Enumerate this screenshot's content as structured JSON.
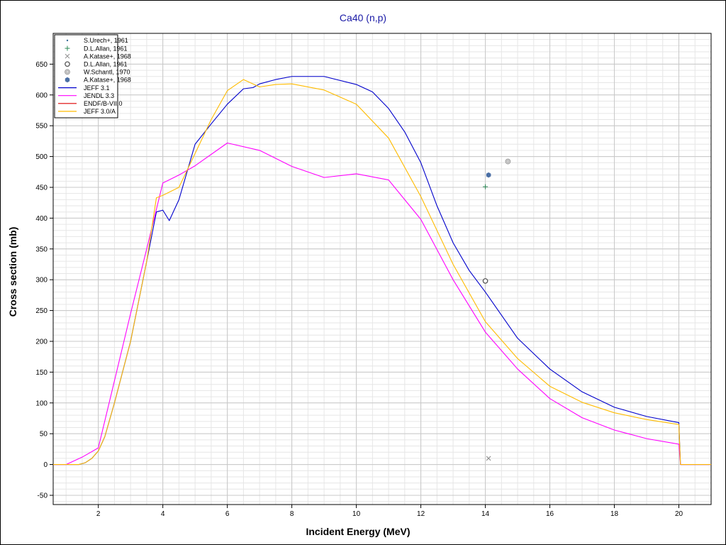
{
  "chart_data": {
    "type": "line",
    "title": "Ca40 (n,p)",
    "xlabel": "Incident Energy (MeV)",
    "ylabel": "Cross section (mb)",
    "xlim": [
      0.6,
      21
    ],
    "ylim": [
      -65,
      700
    ],
    "x_ticks": [
      2,
      4,
      6,
      8,
      10,
      12,
      14,
      16,
      18,
      20
    ],
    "y_ticks": [
      -50,
      0,
      50,
      100,
      150,
      200,
      250,
      300,
      350,
      400,
      450,
      500,
      550,
      600,
      650
    ],
    "grid": true,
    "legend_position": "top-left",
    "series": [
      {
        "name": "JEFF 3.1",
        "color": "#0000cc",
        "kind": "line",
        "points": [
          [
            0.6,
            0
          ],
          [
            1.0,
            0
          ],
          [
            1.4,
            0
          ],
          [
            1.6,
            3
          ],
          [
            1.8,
            10
          ],
          [
            2.0,
            22
          ],
          [
            2.2,
            45
          ],
          [
            2.5,
            100
          ],
          [
            3.0,
            200
          ],
          [
            3.5,
            330
          ],
          [
            3.8,
            410
          ],
          [
            4.0,
            413
          ],
          [
            4.2,
            396
          ],
          [
            4.5,
            430
          ],
          [
            5.0,
            520
          ],
          [
            5.5,
            553
          ],
          [
            6.0,
            585
          ],
          [
            6.5,
            610
          ],
          [
            6.8,
            612
          ],
          [
            7.0,
            618
          ],
          [
            7.5,
            625
          ],
          [
            8.0,
            630
          ],
          [
            9.0,
            630
          ],
          [
            10.0,
            617
          ],
          [
            10.5,
            605
          ],
          [
            11.0,
            578
          ],
          [
            11.5,
            540
          ],
          [
            12.0,
            490
          ],
          [
            12.5,
            420
          ],
          [
            13.0,
            360
          ],
          [
            13.5,
            315
          ],
          [
            14.0,
            280
          ],
          [
            15.0,
            205
          ],
          [
            16.0,
            155
          ],
          [
            17.0,
            118
          ],
          [
            18.0,
            93
          ],
          [
            19.0,
            78
          ],
          [
            20.0,
            68
          ],
          [
            20.05,
            0
          ],
          [
            21.0,
            0
          ]
        ]
      },
      {
        "name": "JENDL 3.3",
        "color": "#ff00ff",
        "kind": "line",
        "points": [
          [
            0.6,
            0
          ],
          [
            1.0,
            0
          ],
          [
            1.5,
            12
          ],
          [
            2.0,
            27
          ],
          [
            3.0,
            245
          ],
          [
            3.5,
            350
          ],
          [
            4.0,
            457
          ],
          [
            4.5,
            470
          ],
          [
            5.0,
            485
          ],
          [
            6.0,
            522
          ],
          [
            7.0,
            510
          ],
          [
            8.0,
            484
          ],
          [
            9.0,
            466
          ],
          [
            10.0,
            472
          ],
          [
            11.0,
            462
          ],
          [
            12.0,
            398
          ],
          [
            13.0,
            300
          ],
          [
            14.0,
            215
          ],
          [
            15.0,
            155
          ],
          [
            16.0,
            107
          ],
          [
            17.0,
            76
          ],
          [
            18.0,
            56
          ],
          [
            19.0,
            42
          ],
          [
            20.0,
            33
          ],
          [
            20.05,
            0
          ],
          [
            21.0,
            0
          ]
        ]
      },
      {
        "name": "ENDF/B-VII.0",
        "color": "#dd0000",
        "kind": "line",
        "points": []
      },
      {
        "name": "JEFF 3.0/A",
        "color": "#ffbb00",
        "kind": "line",
        "points": [
          [
            0.6,
            0
          ],
          [
            1.0,
            0
          ],
          [
            1.4,
            0
          ],
          [
            1.6,
            3
          ],
          [
            1.8,
            10
          ],
          [
            2.0,
            22
          ],
          [
            2.2,
            45
          ],
          [
            2.5,
            100
          ],
          [
            3.0,
            200
          ],
          [
            3.5,
            330
          ],
          [
            3.8,
            433
          ],
          [
            4.0,
            437
          ],
          [
            4.5,
            450
          ],
          [
            5.0,
            505
          ],
          [
            5.5,
            560
          ],
          [
            6.0,
            607
          ],
          [
            6.5,
            625
          ],
          [
            7.0,
            613
          ],
          [
            7.5,
            617
          ],
          [
            8.0,
            618
          ],
          [
            9.0,
            608
          ],
          [
            10.0,
            585
          ],
          [
            11.0,
            530
          ],
          [
            12.0,
            435
          ],
          [
            13.0,
            325
          ],
          [
            14.0,
            232
          ],
          [
            15.0,
            172
          ],
          [
            16.0,
            127
          ],
          [
            17.0,
            101
          ],
          [
            18.0,
            84
          ],
          [
            19.0,
            73
          ],
          [
            20.0,
            65
          ],
          [
            20.05,
            0
          ],
          [
            21.0,
            0
          ]
        ]
      },
      {
        "name": "S.Urech+, 1961",
        "color": "#3a6f9a",
        "kind": "marker",
        "marker": "dot",
        "points": []
      },
      {
        "name": "D.L.Allan, 1961",
        "color": "#2e8b57",
        "kind": "marker",
        "marker": "plus",
        "points": [
          [
            14.0,
            451
          ]
        ]
      },
      {
        "name": "A.Katase+, 1968",
        "color": "#888888",
        "kind": "marker",
        "marker": "cross",
        "points": [
          [
            14.1,
            10
          ]
        ]
      },
      {
        "name": "D.L.Allan, 1961",
        "color": "#555555",
        "kind": "marker",
        "marker": "circle",
        "points": [
          [
            14.0,
            298
          ]
        ]
      },
      {
        "name": "W.Schantl, 1970",
        "color": "#999999",
        "kind": "marker",
        "marker": "ring",
        "points": [
          [
            14.7,
            492
          ]
        ]
      },
      {
        "name": "A.Katase+, 1968",
        "color": "#4a6fa5",
        "kind": "marker",
        "marker": "hex",
        "points": [
          [
            14.1,
            470
          ]
        ]
      }
    ],
    "legend_order": [
      4,
      5,
      6,
      7,
      8,
      9,
      0,
      1,
      2,
      3
    ]
  }
}
